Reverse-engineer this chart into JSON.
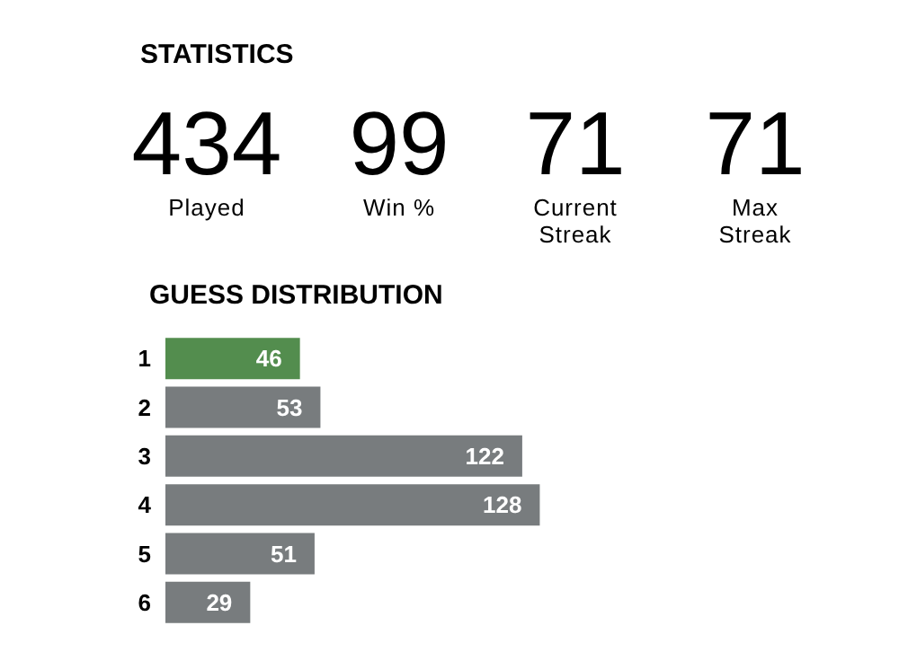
{
  "chart_data": [
    {
      "type": "other",
      "title": "STATISTICS",
      "annotations": [
        "434",
        "Played",
        "99",
        "Win %",
        "71",
        "Current Streak",
        "71",
        "Max Streak"
      ]
    },
    {
      "type": "bar",
      "title": "GUESS DISTRIBUTION",
      "orientation": "horizontal",
      "categories": [
        "1",
        "2",
        "3",
        "4",
        "5",
        "6"
      ],
      "values": [
        46,
        53,
        122,
        128,
        51,
        29
      ],
      "colors": [
        "#538d4e",
        "#787c7e",
        "#787c7e",
        "#787c7e",
        "#787c7e",
        "#787c7e"
      ],
      "data_labels": true
    }
  ]
}
